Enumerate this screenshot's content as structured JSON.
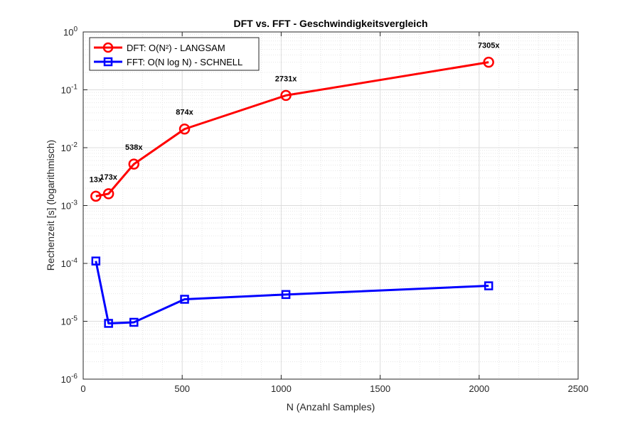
{
  "chart_data": {
    "type": "line",
    "title": "DFT vs. FFT - Geschwindigkeitsvergleich",
    "xlabel": "N (Anzahl Samples)",
    "ylabel": "Rechenzeit [s] (logarithmisch)",
    "xlim": [
      0,
      2500
    ],
    "ylim": [
      1e-06,
      1
    ],
    "yscale": "log",
    "grid": true,
    "legend_position": "top-left",
    "xticks": [
      0,
      500,
      1000,
      1500,
      2000,
      2500
    ],
    "xtick_labels": [
      "0",
      "500",
      "1000",
      "1500",
      "2000",
      "2500"
    ],
    "yticks": [
      {
        "base": "10",
        "exp": "0",
        "value": 1
      },
      {
        "base": "10",
        "exp": "-1",
        "value": 0.1
      },
      {
        "base": "10",
        "exp": "-2",
        "value": 0.01
      },
      {
        "base": "10",
        "exp": "-3",
        "value": 0.001
      },
      {
        "base": "10",
        "exp": "-4",
        "value": 0.0001
      },
      {
        "base": "10",
        "exp": "-5",
        "value": 1e-05
      },
      {
        "base": "10",
        "exp": "-6",
        "value": 1e-06
      }
    ],
    "series": [
      {
        "name": "DFT: O(N²) - LANGSAM",
        "color": "#ff0000",
        "marker": "circle",
        "x": [
          64,
          128,
          256,
          512,
          1024,
          2048
        ],
        "y": [
          0.00145,
          0.0016,
          0.0052,
          0.021,
          0.08,
          0.3
        ]
      },
      {
        "name": "FFT: O(N log N) - SCHNELL",
        "color": "#0000ff",
        "marker": "square",
        "x": [
          64,
          128,
          256,
          512,
          1024,
          2048
        ],
        "y": [
          0.00011,
          9.2e-06,
          9.6e-06,
          2.4e-05,
          2.9e-05,
          4.1e-05
        ]
      }
    ],
    "annotations": [
      {
        "text": "13x",
        "x": 64,
        "y": 0.00145
      },
      {
        "text": "173x",
        "x": 128,
        "y": 0.0016
      },
      {
        "text": "538x",
        "x": 256,
        "y": 0.0052
      },
      {
        "text": "874x",
        "x": 512,
        "y": 0.021
      },
      {
        "text": "2731x",
        "x": 1024,
        "y": 0.08
      },
      {
        "text": "7305x",
        "x": 2048,
        "y": 0.3
      }
    ]
  }
}
